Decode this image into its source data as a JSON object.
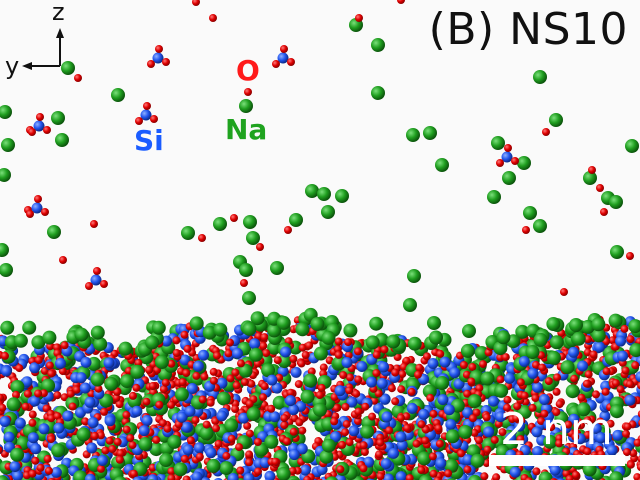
{
  "panel_title": "(B) NS10",
  "labels": {
    "oxygen": "O",
    "sodium": "Na",
    "silicon": "Si"
  },
  "axes": {
    "vertical": "z",
    "horizontal": "y"
  },
  "scale_bar": {
    "label": "2 nm"
  },
  "colors": {
    "background": "#fafafa",
    "oxygen": "#e00000",
    "sodium": "#1f9e1f",
    "silicon": "#2255ee"
  }
}
